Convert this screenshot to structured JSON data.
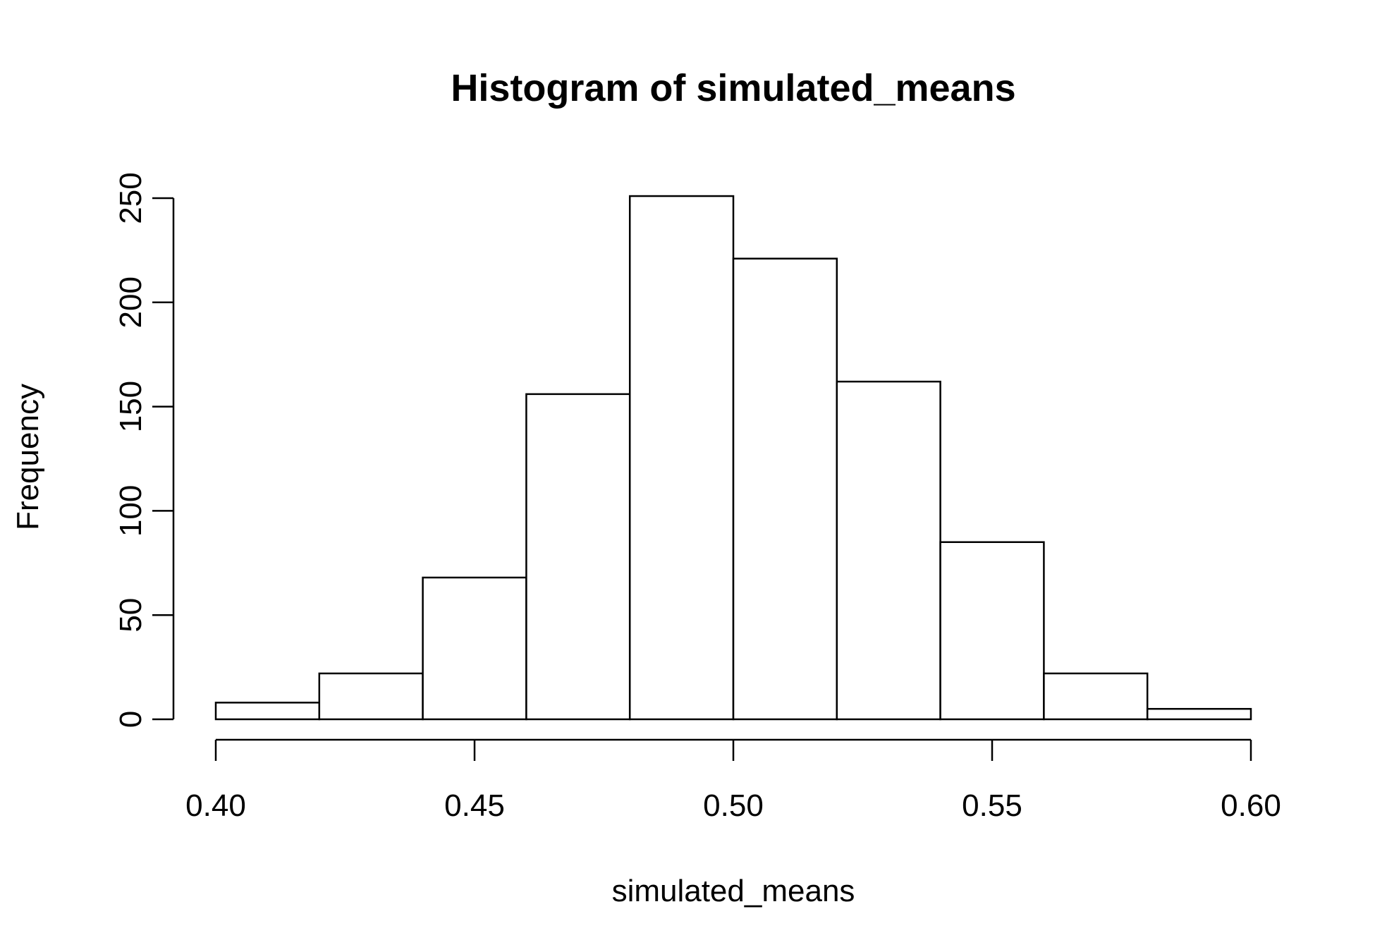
{
  "chart_data": {
    "type": "bar",
    "title": "Histogram of simulated_means",
    "xlabel": "simulated_means",
    "ylabel": "Frequency",
    "bins": [
      {
        "from": 0.4,
        "to": 0.42,
        "count": 8
      },
      {
        "from": 0.42,
        "to": 0.44,
        "count": 22
      },
      {
        "from": 0.44,
        "to": 0.46,
        "count": 68
      },
      {
        "from": 0.46,
        "to": 0.48,
        "count": 156
      },
      {
        "from": 0.48,
        "to": 0.5,
        "count": 251
      },
      {
        "from": 0.5,
        "to": 0.52,
        "count": 221
      },
      {
        "from": 0.52,
        "to": 0.54,
        "count": 162
      },
      {
        "from": 0.54,
        "to": 0.56,
        "count": 85
      },
      {
        "from": 0.56,
        "to": 0.58,
        "count": 22
      },
      {
        "from": 0.58,
        "to": 0.6,
        "count": 5
      }
    ],
    "xlim": [
      0.4,
      0.6
    ],
    "ylim": [
      0,
      250
    ],
    "xticks": [
      "0.40",
      "0.45",
      "0.50",
      "0.55",
      "0.60"
    ],
    "yticks": [
      "0",
      "50",
      "100",
      "150",
      "200",
      "250"
    ],
    "grid": false,
    "legend": "none",
    "bar_fill": "#ffffff",
    "bar_stroke": "#000000"
  }
}
